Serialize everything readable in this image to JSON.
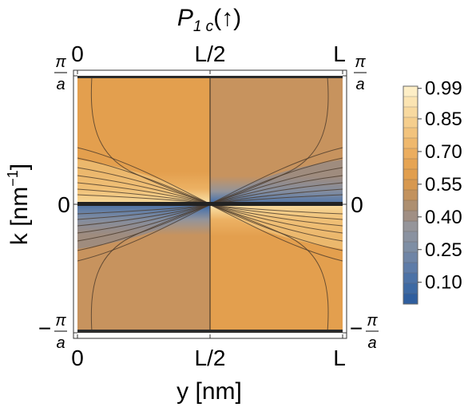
{
  "chart_data": {
    "type": "heatmap",
    "title": "P",
    "title_sub": "1 c",
    "title_suffix": "(↑)",
    "xlabel": "y [nm]",
    "ylabel_main": "k [nm",
    "ylabel_sup": "−1",
    "ylabel_end": "]",
    "x_ticks": [
      "0",
      "L/2",
      "L"
    ],
    "y_ticks": {
      "top_num": "π",
      "top_den": "a",
      "mid": "0",
      "bot_sign": "−",
      "bot_num": "π",
      "bot_den": "a"
    },
    "colorbar": {
      "ticks": [
        0.99,
        0.85,
        0.7,
        0.55,
        0.4,
        0.25,
        0.1
      ],
      "tick_labels": [
        "0.99",
        "0.85",
        "0.70",
        "0.55",
        "0.40",
        "0.25",
        "0.10"
      ],
      "levels": [
        0.0,
        0.05,
        0.1,
        0.15,
        0.2,
        0.25,
        0.3,
        0.35,
        0.4,
        0.45,
        0.5,
        0.55,
        0.6,
        0.65,
        0.7,
        0.75,
        0.8,
        0.85,
        0.9,
        0.95,
        1.0
      ],
      "level_colors": [
        "#2f5e9e",
        "#3d69a3",
        "#4c72a6",
        "#5e7ca8",
        "#6f85a6",
        "#7e8ea4",
        "#8a92a0",
        "#95959a",
        "#a08f84",
        "#ad8f70",
        "#c2925e",
        "#d7984f",
        "#e19e4d",
        "#e6a453",
        "#ebad5f",
        "#efb86d",
        "#f2c37d",
        "#f5ce8d",
        "#f8d99f",
        "#fbe4b2",
        "#fdeec6"
      ]
    },
    "regions": {
      "left_top": 0.55,
      "right_top": 0.45,
      "left_bottom": 0.45,
      "right_bottom": 0.55,
      "edge_low": 0.1,
      "edge_high": 0.99
    }
  }
}
